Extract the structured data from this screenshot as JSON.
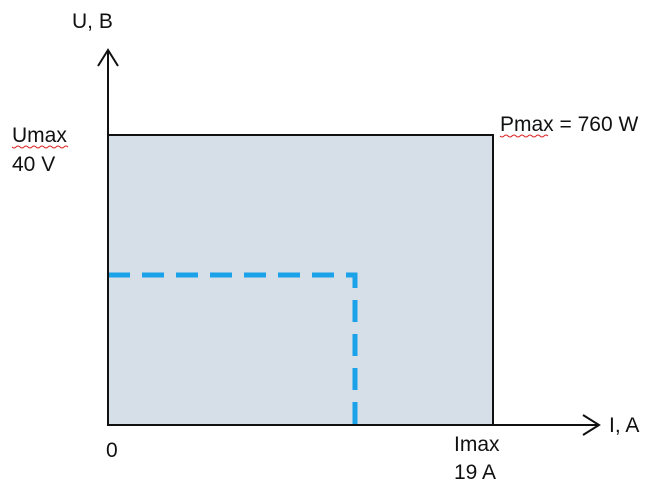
{
  "diagram": {
    "y_axis_label": "U, B",
    "x_axis_label": "I, A",
    "origin_label": "0",
    "umax_label": "Umax",
    "umax_value": "40 V",
    "imax_label": "Imax",
    "imax_value": "19 A",
    "pmax_label": "Pmax = 760 W",
    "colors": {
      "region_fill": "#d6dee8",
      "outline": "#111111",
      "dashed_line": "#1aa3e8",
      "spell_underline": "#dd2222"
    }
  }
}
